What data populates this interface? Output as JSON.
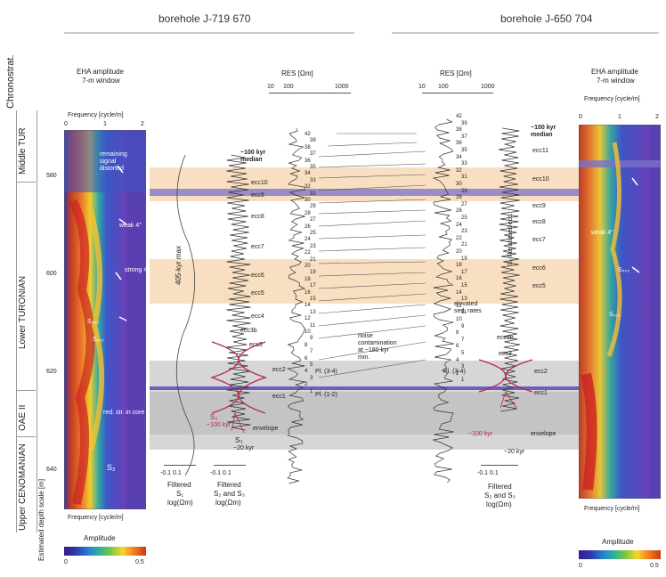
{
  "headers": {
    "left": "borehole J-719 670",
    "right": "borehole J-650 704"
  },
  "chronostrat": {
    "title": "Chronostrat.",
    "units": [
      "Middle TUR",
      "Lower TURONIAN",
      "OAE II",
      "Upper CENOMANIAN"
    ]
  },
  "depth_axis": {
    "label": "Estimated depth scale [m]",
    "ticks": [
      "580",
      "600",
      "620",
      "640"
    ]
  },
  "eha_left": {
    "title1": "EHA amplitude",
    "title2": "7-m window",
    "freq_label": "Frequency [cycle/m]",
    "ticks": [
      "0",
      "1",
      "2"
    ],
    "notes": [
      "remaining signal distorted",
      "weak 4°",
      "strong 4°",
      "S₄₀₅",
      "S₁₀₀",
      "red. str. in core",
      "S₂"
    ]
  },
  "eha_right": {
    "title1": "EHA amplitude",
    "title2": "7-m window",
    "freq_label": "Frequency [cycle/m]",
    "ticks": [
      "0",
      "1",
      "2"
    ],
    "notes": [
      "weak 4°",
      "S₄₀₅",
      "S₁₀₀"
    ]
  },
  "amplitude_bar": {
    "label": "Amplitude",
    "min": "0",
    "max": "0.5"
  },
  "res_left": {
    "title": "RES [Ωm]",
    "ticks": [
      "10",
      "100",
      "1000"
    ]
  },
  "res_right": {
    "title": "RES [Ωm]",
    "ticks": [
      "10",
      "100",
      "1000"
    ]
  },
  "labels_left": {
    "kyr405": "405-kyr max",
    "median": "~100 kyr median",
    "ecc": [
      "ecc10",
      "ecc9",
      "ecc8",
      "ecc7",
      "ecc6",
      "ecc5",
      "ecc4",
      "ecc3b",
      "ecc3",
      "ecc2",
      "ecc1"
    ],
    "kyr100": "~100 kyr",
    "kyr20": "~20 kyr",
    "envelope": "envelope",
    "filtered1": "Filtered",
    "filtered1b": "S₁",
    "filtered1c": "log(Ωm)",
    "filtered2": "Filtered",
    "filtered2b": "S₂ and S₃",
    "filtered2c": "log(Ωm)",
    "scale1": "-0.1   0.1",
    "scale2": "-0.1   0.1",
    "s2": "S₂",
    "s3": "S₃"
  },
  "labels_mid": {
    "noise": "noise contamination at ~180 kyr min.",
    "elevated": "elevated sed. rates",
    "cycles": [
      "42",
      "39",
      "38",
      "37",
      "36",
      "35",
      "34",
      "33",
      "32",
      "31",
      "30",
      "29",
      "28",
      "27",
      "26",
      "25",
      "24",
      "23",
      "22",
      "21",
      "20",
      "19",
      "18",
      "17",
      "16",
      "15",
      "14",
      "13",
      "12",
      "11",
      "10",
      "9",
      "8",
      "7",
      "6",
      "5",
      "4",
      "3",
      "2",
      "1"
    ],
    "pt": "Pl. (3-4)",
    "pt2": "Pl. (1-2)"
  },
  "labels_right": {
    "median": "~100 kyr median",
    "ecc": [
      "ecc11",
      "ecc10",
      "ecc9",
      "ecc8",
      "ecc7",
      "ecc6",
      "ecc5",
      "ecc3b",
      "ecc3",
      "ecc2",
      "ecc1"
    ],
    "alias": "S₂ like aliased ecc.",
    "kyr100": "~100 kyr",
    "kyr20": "~20 kyr",
    "envelope": "envelope",
    "filtered": "Filtered",
    "filteredb": "S₂ and S₃",
    "filteredc": "log(Ωm)",
    "scale": "-0.1   0.1"
  },
  "colors": {
    "orange_band": "#f9dfc1",
    "purple_band": "#8a7fc8",
    "grey_band": "#cfcfcf",
    "curve_red": "#b8254a"
  }
}
